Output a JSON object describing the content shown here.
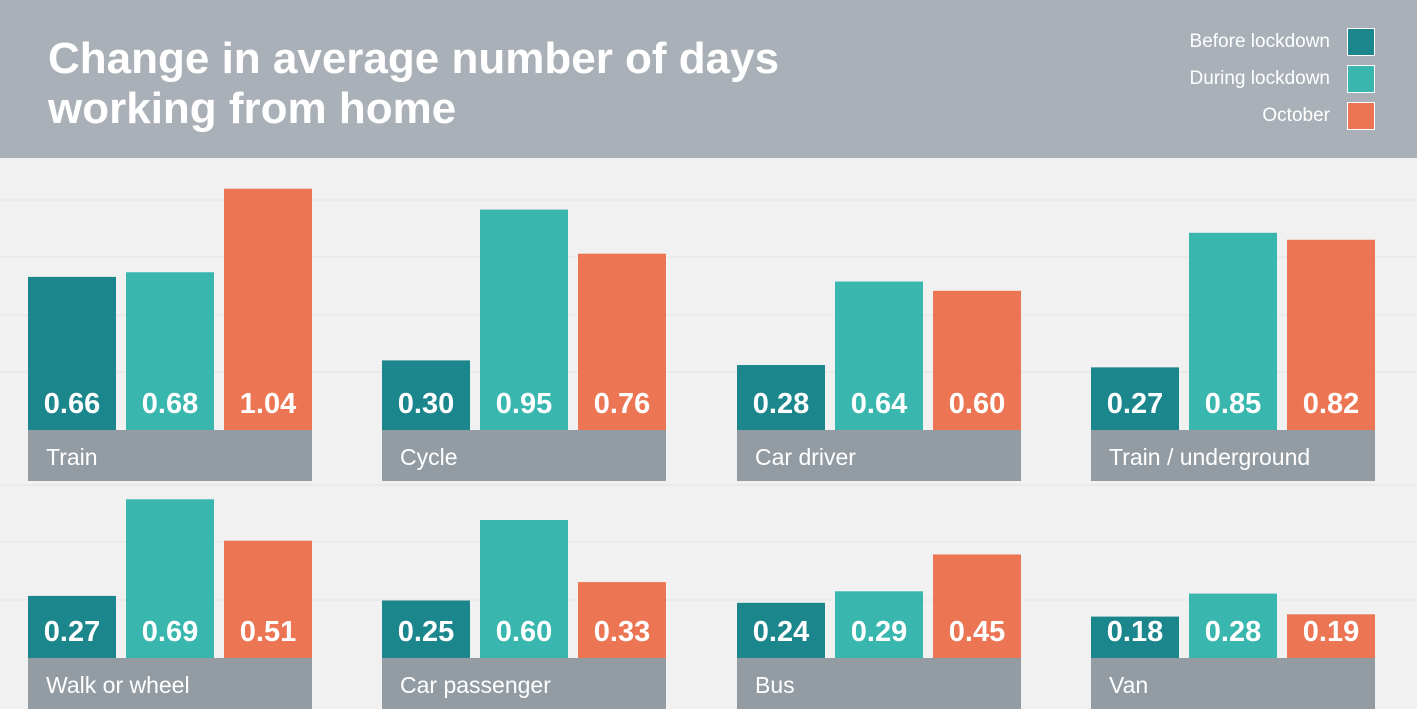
{
  "header": {
    "title": "Change in average number of days\nworking from home"
  },
  "legend": [
    {
      "label": "Before lockdown",
      "color": "#1b868b"
    },
    {
      "label": "During lockdown",
      "color": "#39b7af"
    },
    {
      "label": "October",
      "color": "#ec7553"
    }
  ],
  "chart_data": {
    "type": "bar",
    "title": "Change in average number of days working from home",
    "series_names": [
      "Before lockdown",
      "During lockdown",
      "October"
    ],
    "series_colors": [
      "#1b868b",
      "#39b7af",
      "#ec7553"
    ],
    "panel_color": "#949ca3",
    "grid": true,
    "legend_position": "top-right",
    "panels": [
      {
        "category": "Train",
        "values": [
          0.66,
          0.68,
          1.04
        ]
      },
      {
        "category": "Cycle",
        "values": [
          0.3,
          0.95,
          0.76
        ]
      },
      {
        "category": "Car driver",
        "values": [
          0.28,
          0.64,
          0.6
        ]
      },
      {
        "category": "Train / underground",
        "values": [
          0.27,
          0.85,
          0.82
        ]
      },
      {
        "category": "Walk or wheel",
        "values": [
          0.27,
          0.69,
          0.51
        ]
      },
      {
        "category": "Car passenger",
        "values": [
          0.25,
          0.6,
          0.33
        ]
      },
      {
        "category": "Bus",
        "values": [
          0.24,
          0.29,
          0.45
        ]
      },
      {
        "category": "Van",
        "values": [
          0.18,
          0.28,
          0.19
        ]
      }
    ]
  }
}
